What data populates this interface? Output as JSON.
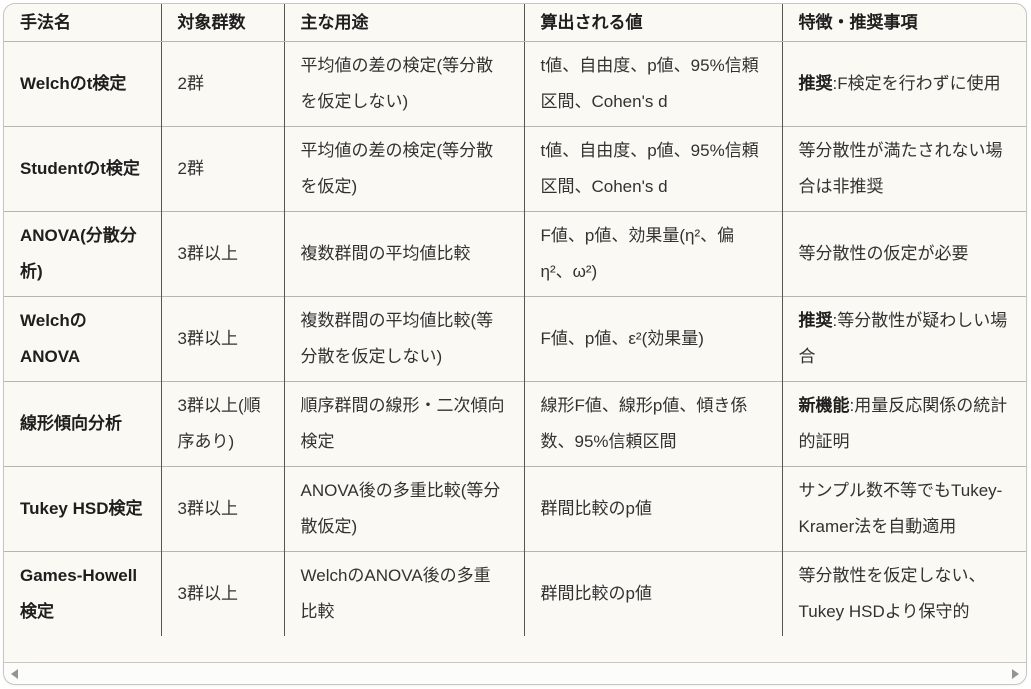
{
  "colors": {
    "page_background": "#ffffff",
    "card_background": "#faf9f4",
    "card_border": "#c7c5c0",
    "row_border": "#b8b6b1",
    "column_border": "#565554",
    "text": "#333231",
    "bold_text": "#1f1e1d",
    "scroll_arrow": "#969490"
  },
  "table": {
    "columns": [
      "手法名",
      "対象群数",
      "主な用途",
      "算出される値",
      "特徴・推奨事項"
    ],
    "rows": [
      {
        "method": "Welchのt検定",
        "groups": "2群",
        "use": "平均値の差の検定(等分散を仮定しない)",
        "values": "t値、自由度、p値、95%信頼区間、Cohen's d",
        "notes_strong": "推奨",
        "notes_rest": ":F検定を行わずに使用"
      },
      {
        "method": "Studentのt検定",
        "groups": "2群",
        "use": "平均値の差の検定(等分散を仮定)",
        "values": "t値、自由度、p値、95%信頼区間、Cohen's d",
        "notes_strong": "",
        "notes_rest": "等分散性が満たされない場合は非推奨"
      },
      {
        "method": "ANOVA(分散分析)",
        "groups": "3群以上",
        "use": "複数群間の平均値比較",
        "values": "F値、p値、効果量(η²、偏η²、ω²)",
        "notes_strong": "",
        "notes_rest": "等分散性の仮定が必要"
      },
      {
        "method": "WelchのANOVA",
        "groups": "3群以上",
        "use": "複数群間の平均値比較(等分散を仮定しない)",
        "values": "F値、p値、ε²(効果量)",
        "notes_strong": "推奨",
        "notes_rest": ":等分散性が疑わしい場合"
      },
      {
        "method": "線形傾向分析",
        "groups": "3群以上(順序あり)",
        "use": "順序群間の線形・二次傾向検定",
        "values": "線形F値、線形p値、傾き係数、95%信頼区間",
        "notes_strong": "新機能",
        "notes_rest": ":用量反応関係の統計的証明"
      },
      {
        "method": "Tukey HSD検定",
        "groups": "3群以上",
        "use": "ANOVA後の多重比較(等分散仮定)",
        "values": "群間比較のp値",
        "notes_strong": "",
        "notes_rest": "サンプル数不等でもTukey-Kramer法を自動適用"
      },
      {
        "method": "Games-Howell検定",
        "groups": "3群以上",
        "use": "WelchのANOVA後の多重比較",
        "values": "群間比較のp値",
        "notes_strong": "",
        "notes_rest": "等分散性を仮定しない、Tukey HSDより保守的"
      }
    ]
  },
  "scrollbar": {
    "left_arrow_icon": "triangle-left",
    "right_arrow_icon": "triangle-right"
  }
}
